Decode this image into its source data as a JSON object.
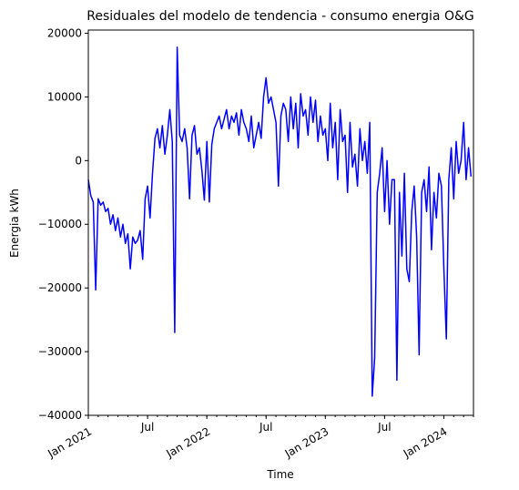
{
  "chart_data": {
    "type": "line",
    "title": "Residuales del modelo de tendencia - consumo energia O&G",
    "xlabel": "Time",
    "ylabel": "Energia kWh",
    "x": [
      "2021-01",
      "2021-01",
      "2021-01",
      "2021-01",
      "2021-02",
      "2021-02",
      "2021-02",
      "2021-02",
      "2021-03",
      "2021-03",
      "2021-03",
      "2021-03",
      "2021-04",
      "2021-04",
      "2021-04",
      "2021-04",
      "2021-05",
      "2021-05",
      "2021-05",
      "2021-05",
      "2021-06",
      "2021-06",
      "2021-06",
      "2021-06",
      "2021-07",
      "2021-07",
      "2021-07",
      "2021-07",
      "2021-08",
      "2021-08",
      "2021-08",
      "2021-08",
      "2021-09",
      "2021-09",
      "2021-09",
      "2021-09",
      "2021-10",
      "2021-10",
      "2021-10",
      "2021-10",
      "2021-11",
      "2021-11",
      "2021-11",
      "2021-11",
      "2021-12",
      "2021-12",
      "2021-12",
      "2021-12",
      "2022-01",
      "2022-01",
      "2022-01",
      "2022-01",
      "2022-02",
      "2022-02",
      "2022-02",
      "2022-02",
      "2022-03",
      "2022-03",
      "2022-03",
      "2022-03",
      "2022-04",
      "2022-04",
      "2022-04",
      "2022-04",
      "2022-05",
      "2022-05",
      "2022-05",
      "2022-05",
      "2022-06",
      "2022-06",
      "2022-06",
      "2022-06",
      "2022-07",
      "2022-07",
      "2022-07",
      "2022-07",
      "2022-08",
      "2022-08",
      "2022-08",
      "2022-08",
      "2022-09",
      "2022-09",
      "2022-09",
      "2022-09",
      "2022-10",
      "2022-10",
      "2022-10",
      "2022-10",
      "2022-11",
      "2022-11",
      "2022-11",
      "2022-11",
      "2022-12",
      "2022-12",
      "2022-12",
      "2022-12",
      "2023-01",
      "2023-01",
      "2023-01",
      "2023-01",
      "2023-02",
      "2023-02",
      "2023-02",
      "2023-02",
      "2023-03",
      "2023-03",
      "2023-03",
      "2023-03",
      "2023-04",
      "2023-04",
      "2023-04",
      "2023-04",
      "2023-05",
      "2023-05",
      "2023-05",
      "2023-05",
      "2023-06",
      "2023-06",
      "2023-06",
      "2023-06",
      "2023-07",
      "2023-07",
      "2023-07",
      "2023-07",
      "2023-08",
      "2023-08",
      "2023-08",
      "2023-08",
      "2023-09",
      "2023-09",
      "2023-09",
      "2023-09",
      "2023-10",
      "2023-10",
      "2023-10",
      "2023-10",
      "2023-11",
      "2023-11",
      "2023-11",
      "2023-11",
      "2023-12",
      "2023-12",
      "2023-12",
      "2023-12",
      "2024-01",
      "2024-01",
      "2024-01",
      "2024-01",
      "2024-02",
      "2024-02",
      "2024-02",
      "2024-02",
      "2024-03",
      "2024-03",
      "2024-03",
      "2024-03"
    ],
    "series": [
      {
        "name": "Residuales",
        "color": "#0000ff",
        "values": [
          -3000,
          -5500,
          -6500,
          -20300,
          -6000,
          -7000,
          -6500,
          -8000,
          -7500,
          -10000,
          -8500,
          -11000,
          -9000,
          -12000,
          -10000,
          -13000,
          -11500,
          -17000,
          -12000,
          -13000,
          -12500,
          -11000,
          -15500,
          -6000,
          -4000,
          -9000,
          -2000,
          3500,
          5000,
          2000,
          5500,
          1000,
          4000,
          8000,
          3000,
          -27000,
          17800,
          4000,
          3000,
          5000,
          2000,
          -6000,
          4000,
          5500,
          1000,
          2000,
          -1500,
          -6200,
          3000,
          -6500,
          2500,
          5000,
          6000,
          7000,
          5000,
          6500,
          8000,
          5000,
          7000,
          6000,
          7500,
          4000,
          8000,
          6000,
          5000,
          3000,
          7000,
          2000,
          4000,
          6000,
          3500,
          10000,
          13000,
          9000,
          10000,
          8000,
          6000,
          -4000,
          7000,
          9000,
          8000,
          3000,
          10000,
          5000,
          9000,
          2000,
          10500,
          7000,
          8000,
          4000,
          10000,
          6000,
          9500,
          3000,
          7000,
          4000,
          5000,
          0,
          9000,
          2000,
          6000,
          -3000,
          8000,
          3000,
          4000,
          -5000,
          6000,
          -1000,
          1000,
          -4000,
          5000,
          0,
          3000,
          -2000,
          6000,
          -37000,
          -31000,
          -5000,
          -2000,
          2000,
          -8000,
          0,
          -10000,
          -3000,
          -3000,
          -34500,
          -5000,
          -15000,
          -2000,
          -17000,
          -19000,
          -8000,
          -4000,
          -12000,
          -30500,
          -5000,
          -3000,
          -8000,
          -1000,
          -14000,
          -5000,
          -9000,
          -2000,
          -4000,
          -17000,
          -28000,
          -3000,
          2000,
          -6000,
          3000,
          -2000,
          0,
          6000,
          -3000,
          2000,
          -2500
        ]
      }
    ],
    "xlim": [
      "2021-01",
      "2024-04"
    ],
    "xticks": [
      {
        "value": "2021-01",
        "label": "Jan 2021"
      },
      {
        "value": "2021-07",
        "label": "Jul"
      },
      {
        "value": "2022-01",
        "label": "Jan 2022"
      },
      {
        "value": "2022-07",
        "label": "Jul"
      },
      {
        "value": "2023-01",
        "label": "Jan 2023"
      },
      {
        "value": "2023-07",
        "label": "Jul"
      },
      {
        "value": "2024-01",
        "label": "Jan 2024"
      }
    ],
    "ylim": [
      -40000,
      20500
    ],
    "yticks": [
      {
        "value": -40000,
        "label": "−40000"
      },
      {
        "value": -30000,
        "label": "−30000"
      },
      {
        "value": -20000,
        "label": "−20000"
      },
      {
        "value": -10000,
        "label": "−10000"
      },
      0,
      10000,
      20000
    ],
    "grid": false
  }
}
